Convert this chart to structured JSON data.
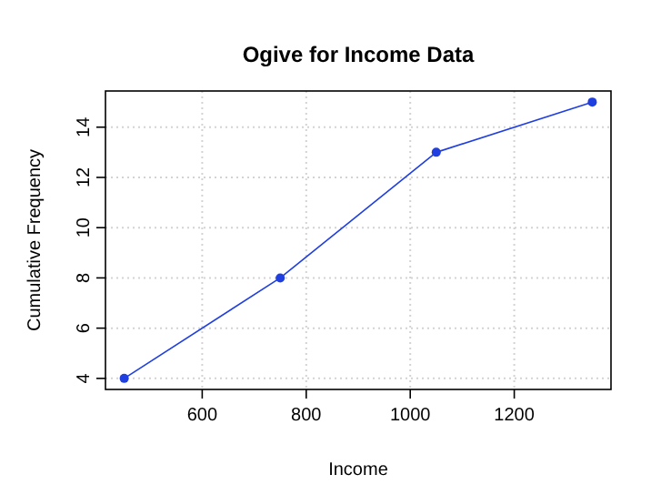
{
  "chart_data": {
    "type": "line",
    "title": "Ogive for Income Data",
    "xlabel": "Income",
    "ylabel": "Cumulative Frequency",
    "x": [
      450,
      750,
      1050,
      1350
    ],
    "series": [
      {
        "color": "#1f3fe0",
        "values": [
          4,
          8,
          13,
          15
        ]
      }
    ],
    "xlim": [
      414,
      1386
    ],
    "xticks": [
      600,
      800,
      1000,
      1200
    ],
    "ylim": [
      3.56,
      15.44
    ],
    "yticks": [
      4,
      6,
      8,
      10,
      12,
      14
    ],
    "grid": true,
    "marker": "circle",
    "line_style": "solid"
  }
}
